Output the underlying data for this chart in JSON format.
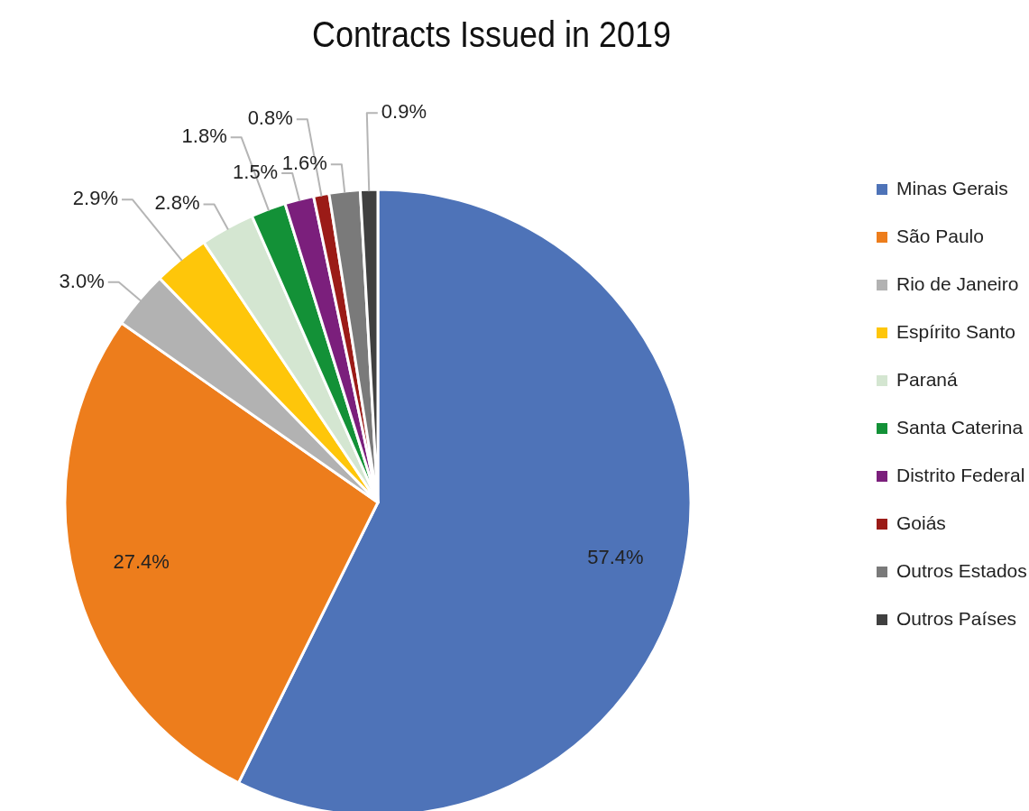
{
  "chart_data": {
    "type": "pie",
    "title": "Contracts Issued in 2019",
    "categories": [
      "Minas Gerais",
      "São Paulo",
      "Rio de Janeiro",
      "Espírito Santo",
      "Paraná",
      "Santa Caterina",
      "Distrito Federal",
      "Goiás",
      "Outros Estados",
      "Outros Países"
    ],
    "values": [
      57.4,
      27.4,
      3.0,
      2.9,
      2.8,
      1.8,
      1.5,
      0.8,
      1.6,
      0.9
    ],
    "value_labels": [
      "57.4%",
      "27.4%",
      "3.0%",
      "2.9%",
      "2.8%",
      "1.8%",
      "1.5%",
      "0.8%",
      "1.6%",
      "0.9%"
    ],
    "colors": [
      "#4e73b8",
      "#ed7d1c",
      "#b2b2b2",
      "#fec60a",
      "#d4e6d1",
      "#139137",
      "#7b1f7c",
      "#9b1b17",
      "#7a7a7a",
      "#404040"
    ],
    "legend": "right"
  }
}
